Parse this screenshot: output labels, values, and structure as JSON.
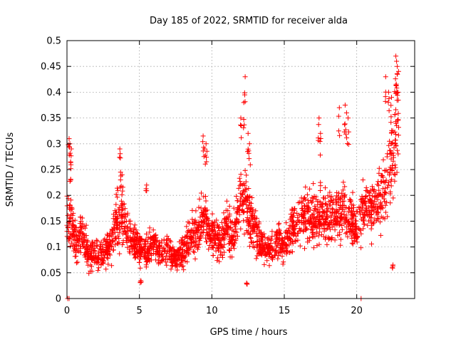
{
  "chart_data": {
    "type": "scatter",
    "title": "Day 185 of 2022, SRMTID for receiver alda",
    "xlabel": "GPS time / hours",
    "ylabel": "SRMTID / TECUs",
    "xlim": [
      0,
      24
    ],
    "ylim": [
      0,
      0.5
    ],
    "xticks": [
      0,
      5,
      10,
      15,
      20
    ],
    "xtick_labels": [
      "0",
      "5",
      "10",
      "15",
      "20"
    ],
    "yticks": [
      0,
      0.05,
      0.1,
      0.15,
      0.2,
      0.25,
      0.3,
      0.35,
      0.4,
      0.45,
      0.5
    ],
    "ytick_labels": [
      "0",
      "0.05",
      "0.1",
      "0.15",
      "0.2",
      "0.25",
      "0.3",
      "0.35",
      "0.4",
      "0.45",
      "0.5"
    ],
    "grid": true,
    "marker": "+",
    "color": "#ff0000",
    "series": [
      {
        "name": "SRMTID",
        "trend": [
          [
            0.0,
            0.155
          ],
          [
            0.3,
            0.16
          ],
          [
            0.6,
            0.1
          ],
          [
            1.0,
            0.13
          ],
          [
            1.5,
            0.08
          ],
          [
            2.0,
            0.09
          ],
          [
            2.5,
            0.085
          ],
          [
            3.0,
            0.1
          ],
          [
            3.5,
            0.16
          ],
          [
            4.0,
            0.14
          ],
          [
            4.5,
            0.11
          ],
          [
            5.0,
            0.1
          ],
          [
            5.5,
            0.09
          ],
          [
            6.0,
            0.11
          ],
          [
            6.5,
            0.09
          ],
          [
            7.0,
            0.095
          ],
          [
            7.5,
            0.075
          ],
          [
            8.0,
            0.09
          ],
          [
            8.5,
            0.12
          ],
          [
            9.0,
            0.13
          ],
          [
            9.5,
            0.15
          ],
          [
            10.0,
            0.13
          ],
          [
            10.5,
            0.11
          ],
          [
            11.0,
            0.14
          ],
          [
            11.5,
            0.12
          ],
          [
            12.0,
            0.2
          ],
          [
            12.5,
            0.18
          ],
          [
            13.0,
            0.13
          ],
          [
            13.5,
            0.1
          ],
          [
            14.0,
            0.09
          ],
          [
            14.5,
            0.11
          ],
          [
            15.0,
            0.1
          ],
          [
            15.5,
            0.14
          ],
          [
            16.0,
            0.15
          ],
          [
            16.5,
            0.16
          ],
          [
            17.0,
            0.15
          ],
          [
            17.5,
            0.17
          ],
          [
            18.0,
            0.15
          ],
          [
            18.5,
            0.16
          ],
          [
            19.0,
            0.17
          ],
          [
            19.5,
            0.16
          ],
          [
            20.0,
            0.13
          ],
          [
            20.5,
            0.18
          ],
          [
            21.0,
            0.17
          ],
          [
            21.5,
            0.19
          ],
          [
            22.0,
            0.21
          ],
          [
            22.5,
            0.28
          ],
          [
            22.9,
            0.33
          ]
        ],
        "spikes": [
          [
            0.15,
            0.31
          ],
          [
            0.2,
            0.3
          ],
          [
            0.25,
            0.265
          ],
          [
            0.3,
            0.29
          ],
          [
            3.65,
            0.29
          ],
          [
            3.7,
            0.245
          ],
          [
            3.8,
            0.24
          ],
          [
            5.5,
            0.22
          ],
          [
            9.4,
            0.315
          ],
          [
            9.5,
            0.29
          ],
          [
            9.6,
            0.3
          ],
          [
            12.0,
            0.35
          ],
          [
            12.2,
            0.38
          ],
          [
            12.3,
            0.43
          ],
          [
            12.5,
            0.32
          ],
          [
            12.6,
            0.3
          ],
          [
            17.4,
            0.35
          ],
          [
            17.5,
            0.32
          ],
          [
            18.8,
            0.37
          ],
          [
            19.2,
            0.375
          ],
          [
            19.3,
            0.36
          ],
          [
            19.4,
            0.35
          ],
          [
            22.0,
            0.43
          ],
          [
            22.2,
            0.4
          ],
          [
            22.4,
            0.39
          ],
          [
            22.7,
            0.47
          ],
          [
            22.75,
            0.46
          ],
          [
            22.8,
            0.45
          ],
          [
            22.85,
            0.4
          ],
          [
            12.4,
            0.03
          ],
          [
            22.5,
            0.065
          ],
          [
            5.1,
            0.035
          ]
        ],
        "zeros": [
          [
            0.05,
            0.0
          ],
          [
            0.15,
            0.0
          ],
          [
            20.3,
            0.0
          ]
        ]
      }
    ]
  }
}
